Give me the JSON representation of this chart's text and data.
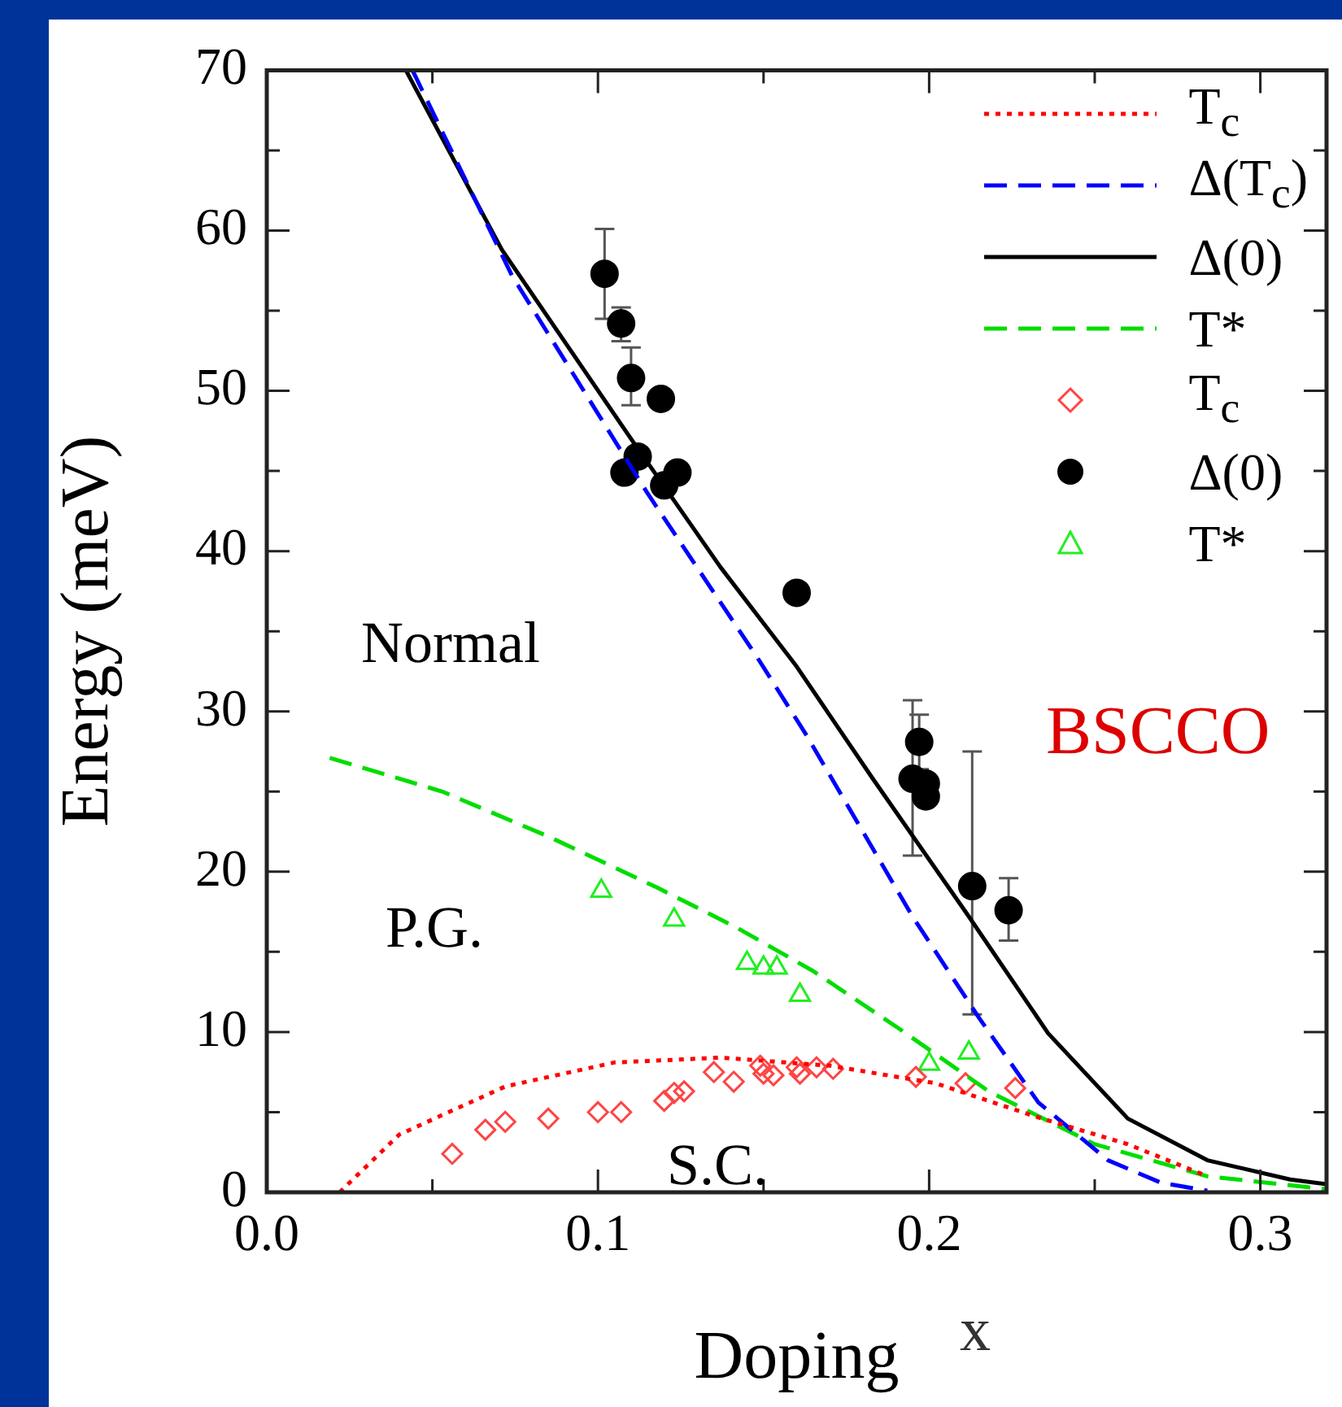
{
  "chart_data": {
    "type": "scatter",
    "xlabel": "Doping",
    "ylabel": "Energy (meV)",
    "annotations": [
      "Normal",
      "P.G.",
      "S.C.",
      "BSCCO",
      "x"
    ],
    "xlim": [
      0,
      0.32
    ],
    "xticks": [
      {
        "value": 0,
        "label": "0.0"
      },
      {
        "value": 0.05,
        "label": null
      },
      0.1,
      {
        "value": 0.15,
        "label": null
      },
      0.2,
      {
        "value": 0.25,
        "label": null
      },
      0.3
    ],
    "ylim": [
      0,
      70
    ],
    "yticks": [
      0,
      {
        "value": 5,
        "label": null
      },
      10,
      {
        "value": 15,
        "label": null
      },
      20,
      {
        "value": 25,
        "label": null
      },
      30,
      {
        "value": 35,
        "label": null
      },
      40,
      {
        "value": 45,
        "label": null
      },
      50,
      {
        "value": 55,
        "label": null
      },
      60,
      {
        "value": 65,
        "label": null
      },
      70
    ],
    "grid": false,
    "legend": "top right",
    "series": [
      {
        "name": "T$_{c}$",
        "type": "line",
        "color": "#ff0000",
        "line_style": "dotted",
        "marker": "none",
        "x": [
          0.022,
          0.04,
          0.072,
          0.105,
          0.137,
          0.17,
          0.202,
          0.234,
          0.26,
          0.284
        ],
        "values": [
          0,
          3.6,
          6.6,
          8.1,
          8.4,
          7.9,
          6.8,
          4.6,
          3.0,
          1.0
        ]
      },
      {
        "name": "Δ(T$_{c}$)",
        "type": "line",
        "color": "#0000ff",
        "line_style": "dashed",
        "marker": "none",
        "x": [
          0.044,
          0.074,
          0.115,
          0.148,
          0.163,
          0.195,
          0.215,
          0.233,
          0.254,
          0.27,
          0.284
        ],
        "values": [
          70,
          57.2,
          43.6,
          33.4,
          28.5,
          17.2,
          10.9,
          5.6,
          2.0,
          0.6,
          0.1
        ]
      },
      {
        "name": "Δ(0)",
        "type": "line",
        "color": "#000000",
        "line_style": "solid",
        "marker": "none",
        "x": [
          0.042,
          0.071,
          0.11,
          0.137,
          0.16,
          0.183,
          0.212,
          0.236,
          0.26,
          0.284,
          0.309,
          0.32
        ],
        "values": [
          70,
          58.8,
          47.0,
          39.0,
          32.8,
          25.8,
          17.2,
          9.9,
          4.6,
          2.0,
          0.8,
          0.5
        ]
      },
      {
        "name": "T*",
        "type": "line",
        "color": "#00dd00",
        "line_style": "dashed",
        "marker": "none",
        "x": [
          0.019,
          0.053,
          0.085,
          0.118,
          0.142,
          0.165,
          0.191,
          0.218,
          0.25,
          0.284,
          0.32
        ],
        "values": [
          27.1,
          25.0,
          22.2,
          19.0,
          16.5,
          13.8,
          10.2,
          6.3,
          3.0,
          1.0,
          0.2
        ]
      },
      {
        "name": "T$_{c}$",
        "color": "#ff4444",
        "marker": "diamond",
        "x": [
          0.056,
          0.066,
          0.072,
          0.085,
          0.1,
          0.107,
          0.12,
          0.123,
          0.126,
          0.135,
          0.141,
          0.149,
          0.15,
          0.153,
          0.16,
          0.161,
          0.166,
          0.171,
          0.196,
          0.211,
          0.226
        ],
        "values": [
          2.4,
          3.9,
          4.4,
          4.6,
          5.0,
          5.0,
          5.7,
          6.2,
          6.3,
          7.5,
          6.9,
          7.9,
          7.4,
          7.3,
          7.8,
          7.4,
          7.8,
          7.7,
          7.2,
          6.8,
          6.5
        ]
      },
      {
        "name": "Δ(0)",
        "color": "#000000",
        "marker": "circle",
        "x": [
          0.102,
          0.107,
          0.11,
          0.119,
          0.108,
          0.112,
          0.12,
          0.124,
          0.16,
          0.197,
          0.195,
          0.199,
          0.199,
          0.213,
          0.224
        ],
        "values": [
          57.3,
          54.2,
          50.8,
          49.5,
          44.9,
          45.9,
          44.1,
          44.9,
          37.4,
          28.1,
          25.8,
          25.5,
          24.7,
          19.1,
          17.6
        ],
        "errors": [
          [
            54.5,
            60.1
          ],
          [
            53.1,
            55.2
          ],
          [
            49.1,
            52.7
          ],
          null,
          null,
          null,
          null,
          null,
          null,
          [
            26.4,
            29.8
          ],
          [
            21.0,
            30.7
          ],
          null,
          null,
          [
            11.1,
            27.5
          ],
          [
            15.7,
            19.6
          ]
        ]
      },
      {
        "name": "T*",
        "color": "#22ee22",
        "marker": "triangle",
        "x": [
          0.101,
          0.123,
          0.145,
          0.15,
          0.154,
          0.161,
          0.2,
          0.212
        ],
        "values": [
          18.8,
          17.0,
          14.3,
          14.0,
          14.0,
          12.3,
          8.0,
          8.7
        ]
      }
    ]
  }
}
